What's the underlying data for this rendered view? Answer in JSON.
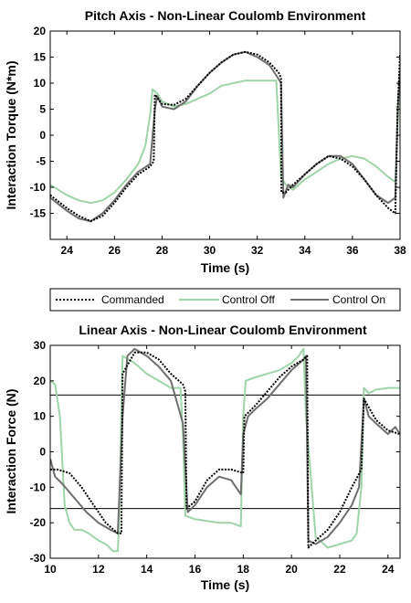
{
  "chart_data": [
    {
      "type": "line",
      "title": "Pitch Axis - Non-Linear Coulomb Environment",
      "xlabel": "Time (s)",
      "ylabel": "Interaction Torque (N*m)",
      "xlim": [
        23.3,
        38
      ],
      "ylim": [
        -20,
        20
      ],
      "xticks": [
        24,
        26,
        28,
        30,
        32,
        34,
        36,
        38
      ],
      "yticks": [
        -15,
        -10,
        -5,
        0,
        5,
        10,
        15,
        20
      ],
      "grid": false,
      "series": [
        {
          "name": "Commanded",
          "color": "#000000",
          "style": "dotted",
          "x": [
            23.3,
            24.0,
            24.5,
            25.0,
            25.5,
            26.0,
            26.5,
            27.0,
            27.5,
            27.65,
            27.7,
            28.0,
            28.5,
            29.0,
            29.5,
            30.0,
            30.5,
            31.0,
            31.5,
            32.0,
            32.5,
            32.9,
            33.0,
            33.02,
            33.2,
            33.5,
            34.0,
            34.5,
            35.0,
            35.5,
            36.0,
            36.5,
            37.0,
            37.5,
            37.8,
            37.9,
            38.0
          ],
          "y": [
            -11.5,
            -14.0,
            -15.5,
            -16.5,
            -15.5,
            -13.0,
            -10.0,
            -7.5,
            -6.0,
            -5.0,
            7.8,
            6.0,
            5.8,
            7.0,
            9.5,
            12.0,
            14.0,
            15.5,
            16.0,
            15.5,
            14.0,
            12.0,
            11.0,
            -11.0,
            -11.0,
            -9.5,
            -7.5,
            -5.5,
            -4.0,
            -4.5,
            -6.0,
            -8.5,
            -11.5,
            -14.0,
            -15.0,
            5.0,
            15.5
          ]
        },
        {
          "name": "Control Off",
          "color": "#9fd4a8",
          "style": "solid",
          "x": [
            23.3,
            24.0,
            24.5,
            25.0,
            25.5,
            26.0,
            26.5,
            27.0,
            27.3,
            27.5,
            27.6,
            27.8,
            28.0,
            28.5,
            29.0,
            29.5,
            30.0,
            30.5,
            31.0,
            31.5,
            32.0,
            32.5,
            32.8,
            33.0,
            33.2,
            33.5,
            34.0,
            34.5,
            35.0,
            35.5,
            36.0,
            36.5,
            37.0,
            37.5,
            37.8,
            38.0
          ],
          "y": [
            -9.5,
            -11.5,
            -12.5,
            -13.0,
            -12.5,
            -11.0,
            -8.5,
            -5.5,
            -2.0,
            4.0,
            8.8,
            8.0,
            6.5,
            5.5,
            6.0,
            7.0,
            8.0,
            9.5,
            10.0,
            10.5,
            10.5,
            10.5,
            10.5,
            -8.0,
            -9.5,
            -10.5,
            -8.5,
            -7.0,
            -5.5,
            -4.5,
            -4.0,
            -4.5,
            -6.0,
            -8.0,
            -9.0,
            13.0
          ]
        },
        {
          "name": "Control On",
          "color": "#6e6e6e",
          "style": "solid",
          "x": [
            23.3,
            24.0,
            24.5,
            25.0,
            25.5,
            26.0,
            26.5,
            27.0,
            27.5,
            27.7,
            27.8,
            28.0,
            28.5,
            29.0,
            29.5,
            30.0,
            30.5,
            31.0,
            31.5,
            32.0,
            32.5,
            32.8,
            33.0,
            33.1,
            33.3,
            33.5,
            34.0,
            34.5,
            35.0,
            35.5,
            36.0,
            36.5,
            37.0,
            37.5,
            37.8,
            37.9,
            38.0
          ],
          "y": [
            -12.0,
            -14.5,
            -16.0,
            -16.5,
            -15.0,
            -12.5,
            -9.5,
            -7.0,
            -5.5,
            5.0,
            7.5,
            5.5,
            5.0,
            6.5,
            9.5,
            12.0,
            14.0,
            15.5,
            16.0,
            15.0,
            13.5,
            11.5,
            10.0,
            -12.0,
            -9.5,
            -10.0,
            -7.5,
            -5.5,
            -4.0,
            -4.0,
            -5.5,
            -8.5,
            -11.5,
            -13.0,
            -12.0,
            5.0,
            12.0
          ]
        }
      ]
    },
    {
      "type": "line",
      "title": "Linear Axis - Non-Linear Coulomb Environment",
      "xlabel": "Time (s)",
      "ylabel": "Interaction Force (N)",
      "xlim": [
        10,
        24.5
      ],
      "ylim": [
        -30,
        30
      ],
      "xticks": [
        10,
        12,
        14,
        16,
        18,
        20,
        22,
        24
      ],
      "yticks": [
        -30,
        -20,
        -10,
        0,
        10,
        20,
        30
      ],
      "reference_lines": [
        16,
        -16
      ],
      "grid": false,
      "series": [
        {
          "name": "Commanded",
          "color": "#000000",
          "style": "dotted",
          "x": [
            10.0,
            10.3,
            10.8,
            11.3,
            11.8,
            12.3,
            12.8,
            12.95,
            13.0,
            13.5,
            14.0,
            14.5,
            15.0,
            15.5,
            15.6,
            15.65,
            16.0,
            16.5,
            17.0,
            17.5,
            18.0,
            18.05,
            18.5,
            19.0,
            19.5,
            20.0,
            20.5,
            20.65,
            20.7,
            21.0,
            21.5,
            22.0,
            22.5,
            22.9,
            23.0,
            23.5,
            24.0,
            24.5
          ],
          "y": [
            -5.0,
            -5.0,
            -6.0,
            -10.0,
            -15.0,
            -20.0,
            -23.0,
            -23.0,
            22.0,
            28.0,
            28.0,
            26.0,
            22.0,
            19.0,
            17.0,
            -16.0,
            -14.0,
            -8.0,
            -5.0,
            -5.0,
            -6.0,
            10.0,
            13.0,
            17.0,
            21.0,
            24.0,
            26.0,
            27.0,
            -27.0,
            -25.0,
            -22.0,
            -17.0,
            -10.0,
            -5.0,
            15.0,
            9.0,
            6.0,
            5.0
          ]
        },
        {
          "name": "Control Off",
          "color": "#9fd4a8",
          "style": "solid",
          "x": [
            10.0,
            10.2,
            10.4,
            10.6,
            10.8,
            11.0,
            11.3,
            11.6,
            12.0,
            12.3,
            12.6,
            12.8,
            12.85,
            13.0,
            13.5,
            14.0,
            14.5,
            15.0,
            15.4,
            15.5,
            15.6,
            16.0,
            16.5,
            17.0,
            17.5,
            17.9,
            18.0,
            18.1,
            18.5,
            19.0,
            19.5,
            20.0,
            20.3,
            20.5,
            20.6,
            21.0,
            21.5,
            22.0,
            22.5,
            22.7,
            22.9,
            23.0,
            23.2,
            23.5,
            24.0,
            24.5
          ],
          "y": [
            20.0,
            19.0,
            10.0,
            -15.0,
            -20.0,
            -22.0,
            -22.0,
            -23.0,
            -25.0,
            -26.0,
            -28.0,
            -28.0,
            -20.0,
            27.0,
            25.0,
            22.0,
            20.0,
            18.0,
            18.0,
            5.0,
            -18.0,
            -19.0,
            -19.5,
            -20.0,
            -20.0,
            -21.0,
            10.0,
            20.0,
            21.0,
            22.0,
            23.0,
            25.0,
            27.0,
            29.0,
            10.0,
            -24.0,
            -27.0,
            -26.0,
            -25.0,
            -23.0,
            -10.0,
            18.0,
            16.5,
            17.5,
            18.0,
            18.0
          ]
        },
        {
          "name": "Control On",
          "color": "#6e6e6e",
          "style": "solid",
          "x": [
            10.0,
            10.2,
            10.5,
            11.0,
            11.5,
            12.0,
            12.5,
            12.8,
            13.0,
            13.2,
            13.5,
            14.0,
            14.5,
            15.0,
            15.5,
            15.7,
            16.0,
            16.5,
            17.0,
            17.5,
            17.9,
            18.0,
            18.2,
            18.5,
            19.0,
            19.5,
            20.0,
            20.5,
            20.6,
            20.7,
            21.0,
            21.5,
            22.0,
            22.5,
            22.8,
            23.0,
            23.2,
            23.5,
            24.0,
            24.3,
            24.5
          ],
          "y": [
            -2.0,
            -7.0,
            -9.0,
            -13.0,
            -17.0,
            -20.0,
            -22.0,
            -23.0,
            10.0,
            27.0,
            29.0,
            27.0,
            24.0,
            20.0,
            8.0,
            -17.0,
            -15.0,
            -10.0,
            -7.0,
            -8.0,
            -12.0,
            5.0,
            10.0,
            12.0,
            15.0,
            19.0,
            23.0,
            26.0,
            27.0,
            -25.0,
            -26.0,
            -24.0,
            -20.0,
            -15.0,
            -10.0,
            15.0,
            10.0,
            8.0,
            5.0,
            7.0,
            5.0
          ]
        }
      ]
    }
  ]
}
